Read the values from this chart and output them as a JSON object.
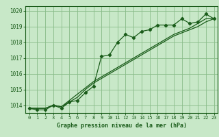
{
  "title": "Graphe pression niveau de la mer (hPa)",
  "bg_color": "#c8e8c8",
  "plot_bg_color": "#c8e8c8",
  "grid_color": "#88bb88",
  "line_color": "#1a5c1a",
  "x_ticks": [
    0,
    1,
    2,
    3,
    4,
    5,
    6,
    7,
    8,
    9,
    10,
    11,
    12,
    13,
    14,
    15,
    16,
    17,
    18,
    19,
    20,
    21,
    22,
    23
  ],
  "ylim": [
    1013.5,
    1020.3
  ],
  "yticks": [
    1014,
    1015,
    1016,
    1017,
    1018,
    1019,
    1020
  ],
  "series1": [
    1013.8,
    1013.7,
    1013.7,
    1014.0,
    1013.8,
    1014.2,
    1014.3,
    1014.8,
    1015.2,
    1017.1,
    1017.2,
    1018.0,
    1018.5,
    1018.3,
    1018.7,
    1018.8,
    1019.1,
    1019.1,
    1019.1,
    1019.5,
    1019.2,
    1019.3,
    1019.8,
    1019.5
  ],
  "series2": [
    1013.8,
    1013.8,
    1013.8,
    1014.0,
    1013.9,
    1014.2,
    1014.5,
    1015.0,
    1015.4,
    1015.7,
    1016.0,
    1016.3,
    1016.6,
    1016.9,
    1017.2,
    1017.5,
    1017.8,
    1018.1,
    1018.4,
    1018.6,
    1018.8,
    1019.0,
    1019.3,
    1019.5
  ],
  "series3": [
    1013.8,
    1013.8,
    1013.8,
    1014.0,
    1013.9,
    1014.3,
    1014.7,
    1015.1,
    1015.5,
    1015.8,
    1016.1,
    1016.4,
    1016.7,
    1017.0,
    1017.3,
    1017.6,
    1017.9,
    1018.2,
    1018.5,
    1018.7,
    1018.9,
    1019.2,
    1019.5,
    1019.5
  ]
}
